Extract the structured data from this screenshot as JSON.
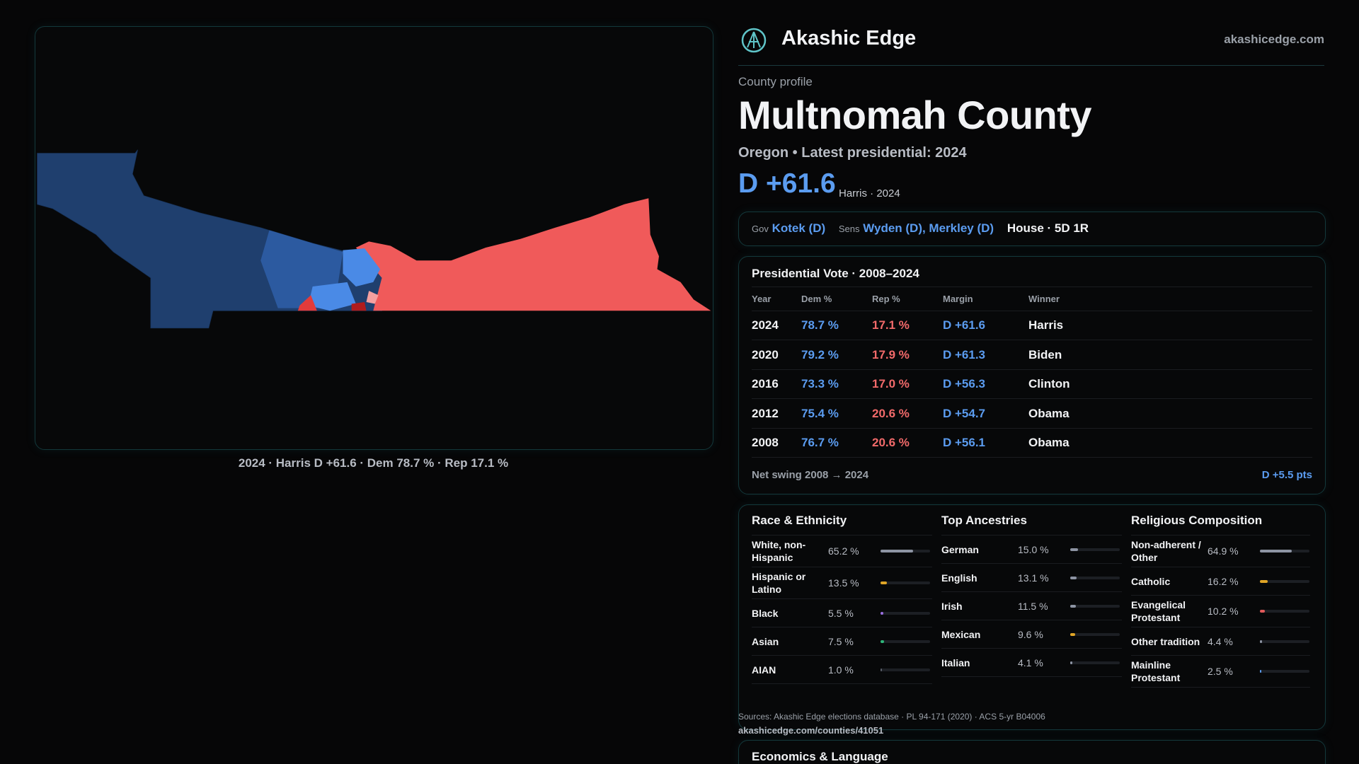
{
  "header": {
    "brand": "Akashic Edge",
    "site": "akashicedge.com"
  },
  "map": {
    "caption": "2024 · Harris D +61.6 · Dem 78.7 % · Rep 17.1 %"
  },
  "profile": {
    "kicker": "County profile",
    "title": "Multnomah County",
    "subtitle": "Oregon • Latest presidential: 2024",
    "margin": "D +61.6",
    "margin_note": "Harris · 2024"
  },
  "officials": {
    "gov_label": "Gov",
    "gov": "Kotek (D)",
    "sens_label": "Sens",
    "sens": "Wyden (D), Merkley (D)",
    "house": "House · 5D 1R"
  },
  "presidential": {
    "title": "Presidential Vote · 2008–2024",
    "columns": [
      "Year",
      "Dem %",
      "Rep %",
      "Margin",
      "Winner"
    ],
    "rows": [
      [
        "2024",
        "78.7 %",
        "17.1 %",
        "D +61.6",
        "Harris"
      ],
      [
        "2020",
        "79.2 %",
        "17.9 %",
        "D +61.3",
        "Biden"
      ],
      [
        "2016",
        "73.3 %",
        "17.0 %",
        "D +56.3",
        "Clinton"
      ],
      [
        "2012",
        "75.4 %",
        "20.6 %",
        "D +54.7",
        "Obama"
      ],
      [
        "2008",
        "76.7 %",
        "20.6 %",
        "D +56.1",
        "Obama"
      ]
    ],
    "swing_label": "Net swing 2008 → 2024",
    "swing": "D +5.5 pts"
  },
  "demographics": [
    {
      "title": "Race & Ethnicity",
      "rows": [
        {
          "name": "White, non-Hispanic",
          "value": 65.2,
          "label": "65.2 %",
          "color": "#8d94a3"
        },
        {
          "name": "Hispanic or Latino",
          "value": 13.5,
          "label": "13.5 %",
          "color": "#e0a526"
        },
        {
          "name": "Black",
          "value": 5.5,
          "label": "5.5 %",
          "color": "#9a6fe0"
        },
        {
          "name": "Asian",
          "value": 7.5,
          "label": "7.5 %",
          "color": "#2fb57a"
        },
        {
          "name": "AIAN",
          "value": 1.0,
          "label": "1.0 %",
          "color": "#5a5f6a"
        }
      ]
    },
    {
      "title": "Top Ancestries",
      "rows": [
        {
          "name": "German",
          "value": 15.0,
          "label": "15.0 %",
          "color": "#8d94a3"
        },
        {
          "name": "English",
          "value": 13.1,
          "label": "13.1 %",
          "color": "#8d94a3"
        },
        {
          "name": "Irish",
          "value": 11.5,
          "label": "11.5 %",
          "color": "#8d94a3"
        },
        {
          "name": "Mexican",
          "value": 9.6,
          "label": "9.6 %",
          "color": "#e0a526"
        },
        {
          "name": "Italian",
          "value": 4.1,
          "label": "4.1 %",
          "color": "#8d94a3"
        }
      ]
    },
    {
      "title": "Religious Composition",
      "rows": [
        {
          "name": "Non-adherent / Other",
          "value": 64.9,
          "label": "64.9 %",
          "color": "#8d94a3"
        },
        {
          "name": "Catholic",
          "value": 16.2,
          "label": "16.2 %",
          "color": "#e0a526"
        },
        {
          "name": "Evangelical Protestant",
          "value": 10.2,
          "label": "10.2 %",
          "color": "#e05a5a"
        },
        {
          "name": "Other tradition",
          "value": 4.4,
          "label": "4.4 %",
          "color": "#8d94a3"
        },
        {
          "name": "Mainline Protestant",
          "value": 2.5,
          "label": "2.5 %",
          "color": "#5b9cf0"
        }
      ]
    }
  ],
  "sources": {
    "text": "Sources: Akashic Edge elections database · PL 94-171 (2020) · ACS 5-yr B04006",
    "url": "akashicedge.com/counties/41051"
  },
  "economics": {
    "title": "Economics & Language"
  }
}
